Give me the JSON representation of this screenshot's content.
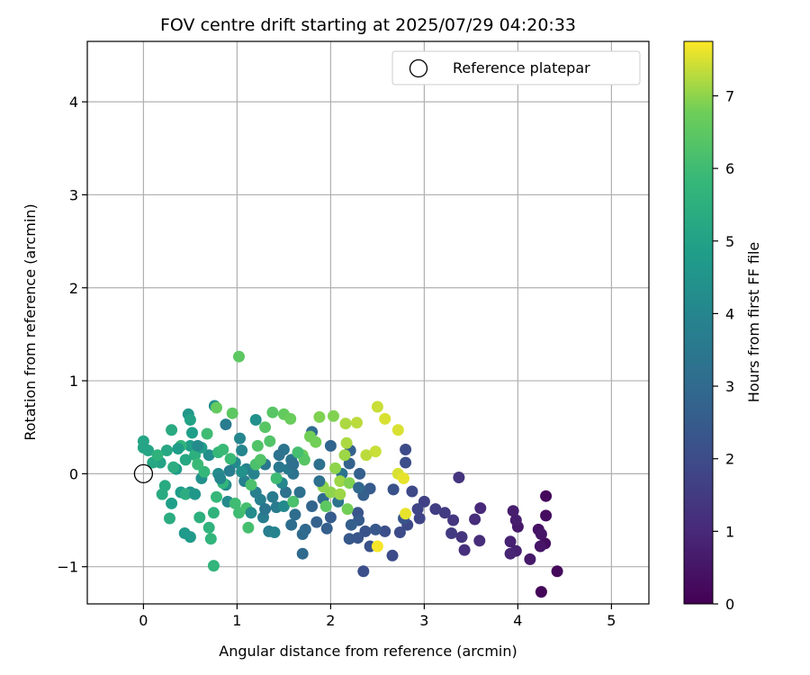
{
  "chart_data": {
    "type": "scatter",
    "title": "FOV centre drift starting at 2025/07/29 04:20:33",
    "xlabel": "Angular distance from reference (arcmin)",
    "ylabel": "Rotation from reference (arcmin)",
    "xlim": [
      -0.6,
      5.4
    ],
    "ylim": [
      -1.4,
      4.65
    ],
    "xticks": [
      0,
      1,
      2,
      3,
      4,
      5
    ],
    "yticks": [
      -1,
      0,
      1,
      2,
      3,
      4
    ],
    "grid": true,
    "legend": {
      "location": "upper right",
      "entries": [
        "Reference platepar"
      ]
    },
    "reference_point": {
      "x": 0,
      "y": 0,
      "marker": "open-circle"
    },
    "colorbar": {
      "label": "Hours from first FF file",
      "colormap": "viridis",
      "range": [
        0,
        7.75
      ],
      "ticks": [
        0,
        1,
        2,
        3,
        4,
        5,
        6,
        7
      ]
    },
    "points": [
      {
        "x": 4.25,
        "y": -1.27,
        "c": 0.1
      },
      {
        "x": 4.42,
        "y": -1.05,
        "c": 0.2
      },
      {
        "x": 4.3,
        "y": -0.24,
        "c": 0.2
      },
      {
        "x": 4.3,
        "y": -0.45,
        "c": 0.3
      },
      {
        "x": 4.29,
        "y": -0.75,
        "c": 0.3
      },
      {
        "x": 4.22,
        "y": -0.6,
        "c": 0.4
      },
      {
        "x": 4.25,
        "y": -0.65,
        "c": 0.5
      },
      {
        "x": 4.24,
        "y": -0.78,
        "c": 0.5
      },
      {
        "x": 4.13,
        "y": -0.92,
        "c": 0.6
      },
      {
        "x": 4.0,
        "y": -0.57,
        "c": 0.6
      },
      {
        "x": 3.98,
        "y": -0.5,
        "c": 0.7
      },
      {
        "x": 3.95,
        "y": -0.4,
        "c": 0.7
      },
      {
        "x": 3.92,
        "y": -0.73,
        "c": 0.8
      },
      {
        "x": 3.98,
        "y": -0.83,
        "c": 0.8
      },
      {
        "x": 3.92,
        "y": -0.86,
        "c": 0.9
      },
      {
        "x": 3.6,
        "y": -0.37,
        "c": 1.0
      },
      {
        "x": 3.59,
        "y": -0.72,
        "c": 1.1
      },
      {
        "x": 3.54,
        "y": -0.49,
        "c": 1.1
      },
      {
        "x": 3.43,
        "y": -0.82,
        "c": 1.2
      },
      {
        "x": 3.37,
        "y": -0.04,
        "c": 1.3
      },
      {
        "x": 3.4,
        "y": -0.68,
        "c": 1.3
      },
      {
        "x": 3.31,
        "y": -0.5,
        "c": 1.4
      },
      {
        "x": 3.29,
        "y": -0.64,
        "c": 1.5
      },
      {
        "x": 3.22,
        "y": -0.42,
        "c": 1.5
      },
      {
        "x": 3.12,
        "y": -0.38,
        "c": 1.6
      },
      {
        "x": 3.0,
        "y": -0.3,
        "c": 1.7
      },
      {
        "x": 2.95,
        "y": -0.48,
        "c": 1.8
      },
      {
        "x": 2.93,
        "y": -0.38,
        "c": 1.8
      },
      {
        "x": 2.87,
        "y": -0.19,
        "c": 1.9
      },
      {
        "x": 2.82,
        "y": -0.55,
        "c": 1.9
      },
      {
        "x": 2.74,
        "y": -0.63,
        "c": 2.0
      },
      {
        "x": 2.66,
        "y": -0.88,
        "c": 2.0
      },
      {
        "x": 2.58,
        "y": -0.62,
        "c": 2.1
      },
      {
        "x": 2.35,
        "y": -1.05,
        "c": 2.1
      },
      {
        "x": 2.42,
        "y": -0.78,
        "c": 2.2
      },
      {
        "x": 2.37,
        "y": -0.62,
        "c": 2.2
      },
      {
        "x": 2.29,
        "y": -0.69,
        "c": 2.3
      },
      {
        "x": 2.29,
        "y": -0.42,
        "c": 2.3
      },
      {
        "x": 2.2,
        "y": -0.7,
        "c": 2.4
      },
      {
        "x": 2.48,
        "y": -0.6,
        "c": 2.4
      },
      {
        "x": 2.3,
        "y": -0.5,
        "c": 2.5
      },
      {
        "x": 2.42,
        "y": -0.16,
        "c": 2.5
      },
      {
        "x": 2.35,
        "y": -0.23,
        "c": 2.6
      },
      {
        "x": 2.31,
        "y": 0.0,
        "c": 2.6
      },
      {
        "x": 2.21,
        "y": 0.25,
        "c": 2.7
      },
      {
        "x": 2.2,
        "y": 0.11,
        "c": 2.7
      },
      {
        "x": 2.8,
        "y": 0.26,
        "c": 2.0
      },
      {
        "x": 2.8,
        "y": 0.12,
        "c": 2.1
      },
      {
        "x": 2.67,
        "y": -0.17,
        "c": 2.2
      },
      {
        "x": 2.78,
        "y": -0.48,
        "c": 2.3
      },
      {
        "x": 2.0,
        "y": -0.47,
        "c": 2.5
      },
      {
        "x": 1.96,
        "y": -0.59,
        "c": 2.6
      },
      {
        "x": 1.85,
        "y": -0.52,
        "c": 2.7
      },
      {
        "x": 1.8,
        "y": -0.35,
        "c": 2.8
      },
      {
        "x": 1.73,
        "y": -0.6,
        "c": 2.9
      },
      {
        "x": 1.7,
        "y": -0.86,
        "c": 3.0
      },
      {
        "x": 1.7,
        "y": -0.65,
        "c": 3.0
      },
      {
        "x": 1.58,
        "y": -0.55,
        "c": 3.1
      },
      {
        "x": 1.62,
        "y": -0.44,
        "c": 3.1
      },
      {
        "x": 1.67,
        "y": -0.2,
        "c": 3.2
      },
      {
        "x": 1.52,
        "y": -0.2,
        "c": 3.3
      },
      {
        "x": 1.6,
        "y": 0.0,
        "c": 3.3
      },
      {
        "x": 1.58,
        "y": 0.15,
        "c": 3.4
      },
      {
        "x": 1.5,
        "y": 0.26,
        "c": 3.4
      },
      {
        "x": 1.55,
        "y": 0.05,
        "c": 3.5
      },
      {
        "x": 1.45,
        "y": 0.07,
        "c": 3.5
      },
      {
        "x": 1.42,
        "y": -0.36,
        "c": 3.6
      },
      {
        "x": 1.38,
        "y": -0.25,
        "c": 3.6
      },
      {
        "x": 1.34,
        "y": -0.62,
        "c": 3.7
      },
      {
        "x": 1.28,
        "y": -0.47,
        "c": 3.7
      },
      {
        "x": 1.25,
        "y": -0.28,
        "c": 3.8
      },
      {
        "x": 1.2,
        "y": -0.2,
        "c": 3.8
      },
      {
        "x": 1.18,
        "y": 0.0,
        "c": 3.9
      },
      {
        "x": 1.1,
        "y": 0.05,
        "c": 3.9
      },
      {
        "x": 1.05,
        "y": 0.25,
        "c": 4.0
      },
      {
        "x": 1.03,
        "y": 0.38,
        "c": 4.0
      },
      {
        "x": 0.98,
        "y": 0.12,
        "c": 4.1
      },
      {
        "x": 0.9,
        "y": -0.3,
        "c": 4.1
      },
      {
        "x": 0.88,
        "y": -0.12,
        "c": 4.2
      },
      {
        "x": 0.8,
        "y": 0.0,
        "c": 4.2
      },
      {
        "x": 0.76,
        "y": 0.73,
        "c": 4.3
      },
      {
        "x": 0.7,
        "y": 0.2,
        "c": 4.3
      },
      {
        "x": 0.62,
        "y": -0.05,
        "c": 4.4
      },
      {
        "x": 0.5,
        "y": -0.2,
        "c": 4.5
      },
      {
        "x": 1.92,
        "y": -0.27,
        "c": 3.0
      },
      {
        "x": 1.8,
        "y": 0.45,
        "c": 3.1
      },
      {
        "x": 1.88,
        "y": 0.1,
        "c": 3.2
      },
      {
        "x": 2.08,
        "y": -0.3,
        "c": 3.3
      },
      {
        "x": 2.12,
        "y": 0.0,
        "c": 3.4
      },
      {
        "x": 1.3,
        "y": 0.1,
        "c": 3.5
      },
      {
        "x": 0.88,
        "y": 0.53,
        "c": 3.6
      },
      {
        "x": 0.92,
        "y": 0.03,
        "c": 3.7
      },
      {
        "x": 1.08,
        "y": -0.08,
        "c": 3.8
      },
      {
        "x": 1.4,
        "y": -0.63,
        "c": 3.9
      },
      {
        "x": 1.48,
        "y": -0.1,
        "c": 4.0
      },
      {
        "x": 1.5,
        "y": -0.35,
        "c": 4.1
      },
      {
        "x": 0.48,
        "y": 0.64,
        "c": 4.6
      },
      {
        "x": 0.5,
        "y": -0.68,
        "c": 4.7
      },
      {
        "x": 0.44,
        "y": -0.64,
        "c": 4.7
      },
      {
        "x": 0.4,
        "y": -0.2,
        "c": 4.8
      },
      {
        "x": 0.35,
        "y": 0.05,
        "c": 4.8
      },
      {
        "x": 0.5,
        "y": 0.3,
        "c": 4.9
      },
      {
        "x": 0.3,
        "y": -0.32,
        "c": 4.9
      },
      {
        "x": 0.18,
        "y": 0.12,
        "c": 5.0
      },
      {
        "x": 0.0,
        "y": 0.28,
        "c": 5.1
      },
      {
        "x": 0.05,
        "y": 0.25,
        "c": 5.1
      },
      {
        "x": 0.1,
        "y": 0.12,
        "c": 5.2
      },
      {
        "x": 0.25,
        "y": 0.25,
        "c": 5.2
      },
      {
        "x": 0.3,
        "y": 0.47,
        "c": 5.3
      },
      {
        "x": 0.23,
        "y": -0.13,
        "c": 5.3
      },
      {
        "x": 0.32,
        "y": 0.07,
        "c": 5.4
      },
      {
        "x": 0.45,
        "y": -0.22,
        "c": 5.4
      },
      {
        "x": 0.55,
        "y": 0.2,
        "c": 5.5
      },
      {
        "x": 0.6,
        "y": -0.47,
        "c": 5.5
      },
      {
        "x": 0.7,
        "y": -0.58,
        "c": 5.6
      },
      {
        "x": 0.75,
        "y": -0.42,
        "c": 5.6
      },
      {
        "x": 0.75,
        "y": -0.99,
        "c": 5.7
      },
      {
        "x": 0.72,
        "y": -0.7,
        "c": 5.7
      },
      {
        "x": 0.78,
        "y": -0.25,
        "c": 5.8
      },
      {
        "x": 0.8,
        "y": 0.23,
        "c": 5.8
      },
      {
        "x": 0.85,
        "y": 0.26,
        "c": 5.9
      },
      {
        "x": 0.93,
        "y": 0.16,
        "c": 5.9
      },
      {
        "x": 0.98,
        "y": -0.32,
        "c": 6.0
      },
      {
        "x": 1.02,
        "y": -0.42,
        "c": 6.0
      },
      {
        "x": 1.1,
        "y": -0.37,
        "c": 6.1
      },
      {
        "x": 1.12,
        "y": -0.58,
        "c": 6.1
      },
      {
        "x": 1.15,
        "y": -0.12,
        "c": 6.2
      },
      {
        "x": 1.2,
        "y": 0.1,
        "c": 6.2
      },
      {
        "x": 1.22,
        "y": 0.3,
        "c": 6.3
      },
      {
        "x": 1.35,
        "y": 0.35,
        "c": 6.3
      },
      {
        "x": 1.3,
        "y": 0.5,
        "c": 6.4
      },
      {
        "x": 1.38,
        "y": 0.66,
        "c": 6.4
      },
      {
        "x": 1.02,
        "y": 1.26,
        "c": 6.5
      },
      {
        "x": 0.95,
        "y": 0.65,
        "c": 6.5
      },
      {
        "x": 0.78,
        "y": 0.71,
        "c": 6.6
      },
      {
        "x": 1.5,
        "y": 0.64,
        "c": 6.6
      },
      {
        "x": 1.57,
        "y": 0.59,
        "c": 6.7
      },
      {
        "x": 1.7,
        "y": 0.2,
        "c": 6.7
      },
      {
        "x": 1.78,
        "y": 0.4,
        "c": 6.8
      },
      {
        "x": 1.84,
        "y": 0.34,
        "c": 6.8
      },
      {
        "x": 1.88,
        "y": 0.61,
        "c": 6.9
      },
      {
        "x": 2.03,
        "y": 0.62,
        "c": 6.9
      },
      {
        "x": 1.92,
        "y": -0.14,
        "c": 7.0
      },
      {
        "x": 2.05,
        "y": 0.06,
        "c": 7.0
      },
      {
        "x": 2.1,
        "y": -0.08,
        "c": 7.1
      },
      {
        "x": 2.15,
        "y": 0.2,
        "c": 7.1
      },
      {
        "x": 2.17,
        "y": 0.33,
        "c": 7.2
      },
      {
        "x": 2.16,
        "y": 0.54,
        "c": 7.2
      },
      {
        "x": 2.28,
        "y": 0.55,
        "c": 7.3
      },
      {
        "x": 2.38,
        "y": 0.2,
        "c": 7.3
      },
      {
        "x": 2.48,
        "y": 0.24,
        "c": 7.4
      },
      {
        "x": 2.5,
        "y": 0.72,
        "c": 7.4
      },
      {
        "x": 2.58,
        "y": 0.59,
        "c": 7.5
      },
      {
        "x": 2.72,
        "y": 0.47,
        "c": 7.5
      },
      {
        "x": 2.72,
        "y": 0.0,
        "c": 7.5
      },
      {
        "x": 2.78,
        "y": -0.05,
        "c": 7.6
      },
      {
        "x": 2.8,
        "y": -0.43,
        "c": 7.6
      },
      {
        "x": 2.5,
        "y": -0.78,
        "c": 7.7
      },
      {
        "x": 2.18,
        "y": -0.38,
        "c": 6.8
      },
      {
        "x": 2.0,
        "y": -0.2,
        "c": 7.0
      },
      {
        "x": 2.1,
        "y": -0.22,
        "c": 7.1
      },
      {
        "x": 2.2,
        "y": -0.1,
        "c": 6.9
      },
      {
        "x": 1.95,
        "y": -0.35,
        "c": 6.5
      },
      {
        "x": 1.6,
        "y": -0.3,
        "c": 6.2
      },
      {
        "x": 1.72,
        "y": 0.15,
        "c": 6.4
      },
      {
        "x": 1.65,
        "y": 0.23,
        "c": 6.1
      },
      {
        "x": 1.42,
        "y": -0.05,
        "c": 6.0
      },
      {
        "x": 1.25,
        "y": 0.15,
        "c": 6.3
      },
      {
        "x": 0.65,
        "y": 0.02,
        "c": 5.8
      },
      {
        "x": 0.58,
        "y": 0.1,
        "c": 5.9
      },
      {
        "x": 0.85,
        "y": -0.1,
        "c": 5.7
      },
      {
        "x": 0.68,
        "y": 0.43,
        "c": 6.0
      },
      {
        "x": 0.4,
        "y": 0.3,
        "c": 5.7
      },
      {
        "x": 0.15,
        "y": 0.2,
        "c": 5.6
      },
      {
        "x": 0.28,
        "y": -0.48,
        "c": 5.4
      },
      {
        "x": 0.2,
        "y": -0.22,
        "c": 5.3
      },
      {
        "x": 0.45,
        "y": 0.15,
        "c": 5.2
      },
      {
        "x": 0.0,
        "y": 0.35,
        "c": 5.1
      },
      {
        "x": 0.5,
        "y": 0.58,
        "c": 5.0
      },
      {
        "x": 0.52,
        "y": 0.44,
        "c": 4.9
      },
      {
        "x": 0.37,
        "y": 0.27,
        "c": 4.8
      },
      {
        "x": 0.62,
        "y": 0.28,
        "c": 4.9
      },
      {
        "x": 0.55,
        "y": -0.22,
        "c": 4.6
      },
      {
        "x": 1.15,
        "y": -0.42,
        "c": 4.2
      },
      {
        "x": 1.2,
        "y": 0.58,
        "c": 4.4
      },
      {
        "x": 1.05,
        "y": 0.02,
        "c": 4.4
      },
      {
        "x": 2.3,
        "y": -0.15,
        "c": 2.9
      },
      {
        "x": 2.22,
        "y": -0.55,
        "c": 2.6
      },
      {
        "x": 2.0,
        "y": 0.3,
        "c": 2.8
      },
      {
        "x": 1.88,
        "y": -0.08,
        "c": 3.2
      },
      {
        "x": 1.6,
        "y": 0.1,
        "c": 3.2
      },
      {
        "x": 1.3,
        "y": -0.38,
        "c": 3.4
      },
      {
        "x": 0.82,
        "y": -0.05,
        "c": 4.0
      },
      {
        "x": 0.58,
        "y": 0.3,
        "c": 4.2
      },
      {
        "x": 1.45,
        "y": 0.2,
        "c": 3.3
      }
    ]
  }
}
